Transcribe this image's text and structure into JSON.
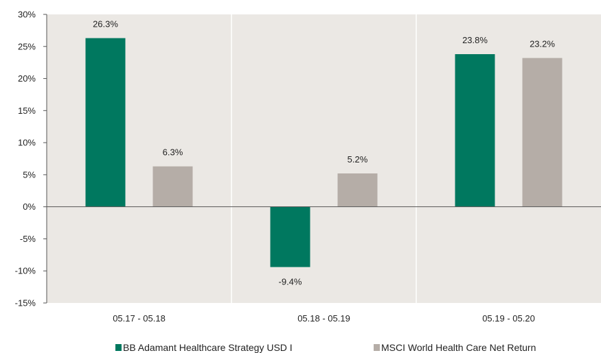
{
  "chart_data": {
    "type": "bar",
    "categories": [
      "05.17 - 05.18",
      "05.18 - 05.19",
      "05.19 - 05.20"
    ],
    "series": [
      {
        "name": "BB Adamant Healthcare Strategy USD I",
        "values": [
          26.3,
          -9.4,
          23.8
        ],
        "labels": [
          "26.3%",
          "-9.4%",
          "23.8%"
        ],
        "color": "#00785f"
      },
      {
        "name": "MSCI World Health Care Net Return",
        "values": [
          6.3,
          5.2,
          23.2
        ],
        "labels": [
          "6.3%",
          "5.2%",
          "23.2%"
        ],
        "color": "#b5ada7"
      }
    ],
    "yticks": [
      30,
      25,
      20,
      15,
      10,
      5,
      0,
      -5,
      -10,
      -15
    ],
    "ytick_labels": [
      "30%",
      "25%",
      "20%",
      "15%",
      "10%",
      "5%",
      "0%",
      "-5%",
      "-10%",
      "-15%"
    ],
    "ylim": [
      -15,
      30
    ],
    "grid": false,
    "legend_position": "bottom",
    "plot_background": "#ebe8e4",
    "title": "",
    "xlabel": "",
    "ylabel": ""
  }
}
